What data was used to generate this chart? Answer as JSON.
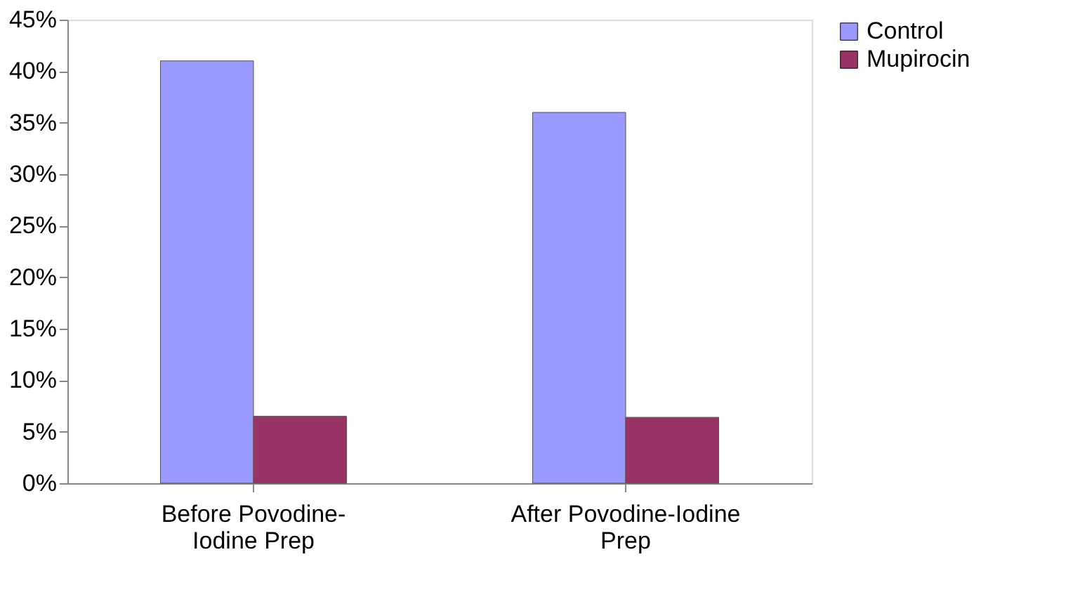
{
  "chart_data": {
    "type": "bar",
    "categories": [
      "Before Povodine-Iodine Prep",
      "After Povodine-Iodine Prep"
    ],
    "series": [
      {
        "name": "Control",
        "color": "#9999ff",
        "values": [
          41,
          36
        ]
      },
      {
        "name": "Mupirocin",
        "color": "#993366",
        "values": [
          6.5,
          6.4
        ]
      }
    ],
    "ylim": [
      0,
      45
    ],
    "yticks": [
      {
        "value": 0,
        "label": "0%"
      },
      {
        "value": 5,
        "label": "5%"
      },
      {
        "value": 10,
        "label": "10%"
      },
      {
        "value": 15,
        "label": "15%"
      },
      {
        "value": 20,
        "label": "20%"
      },
      {
        "value": 25,
        "label": "25%"
      },
      {
        "value": 30,
        "label": "30%"
      },
      {
        "value": 35,
        "label": "35%"
      },
      {
        "value": 40,
        "label": "40%"
      },
      {
        "value": 45,
        "label": "45%"
      }
    ],
    "grid": false,
    "legend": "right"
  }
}
